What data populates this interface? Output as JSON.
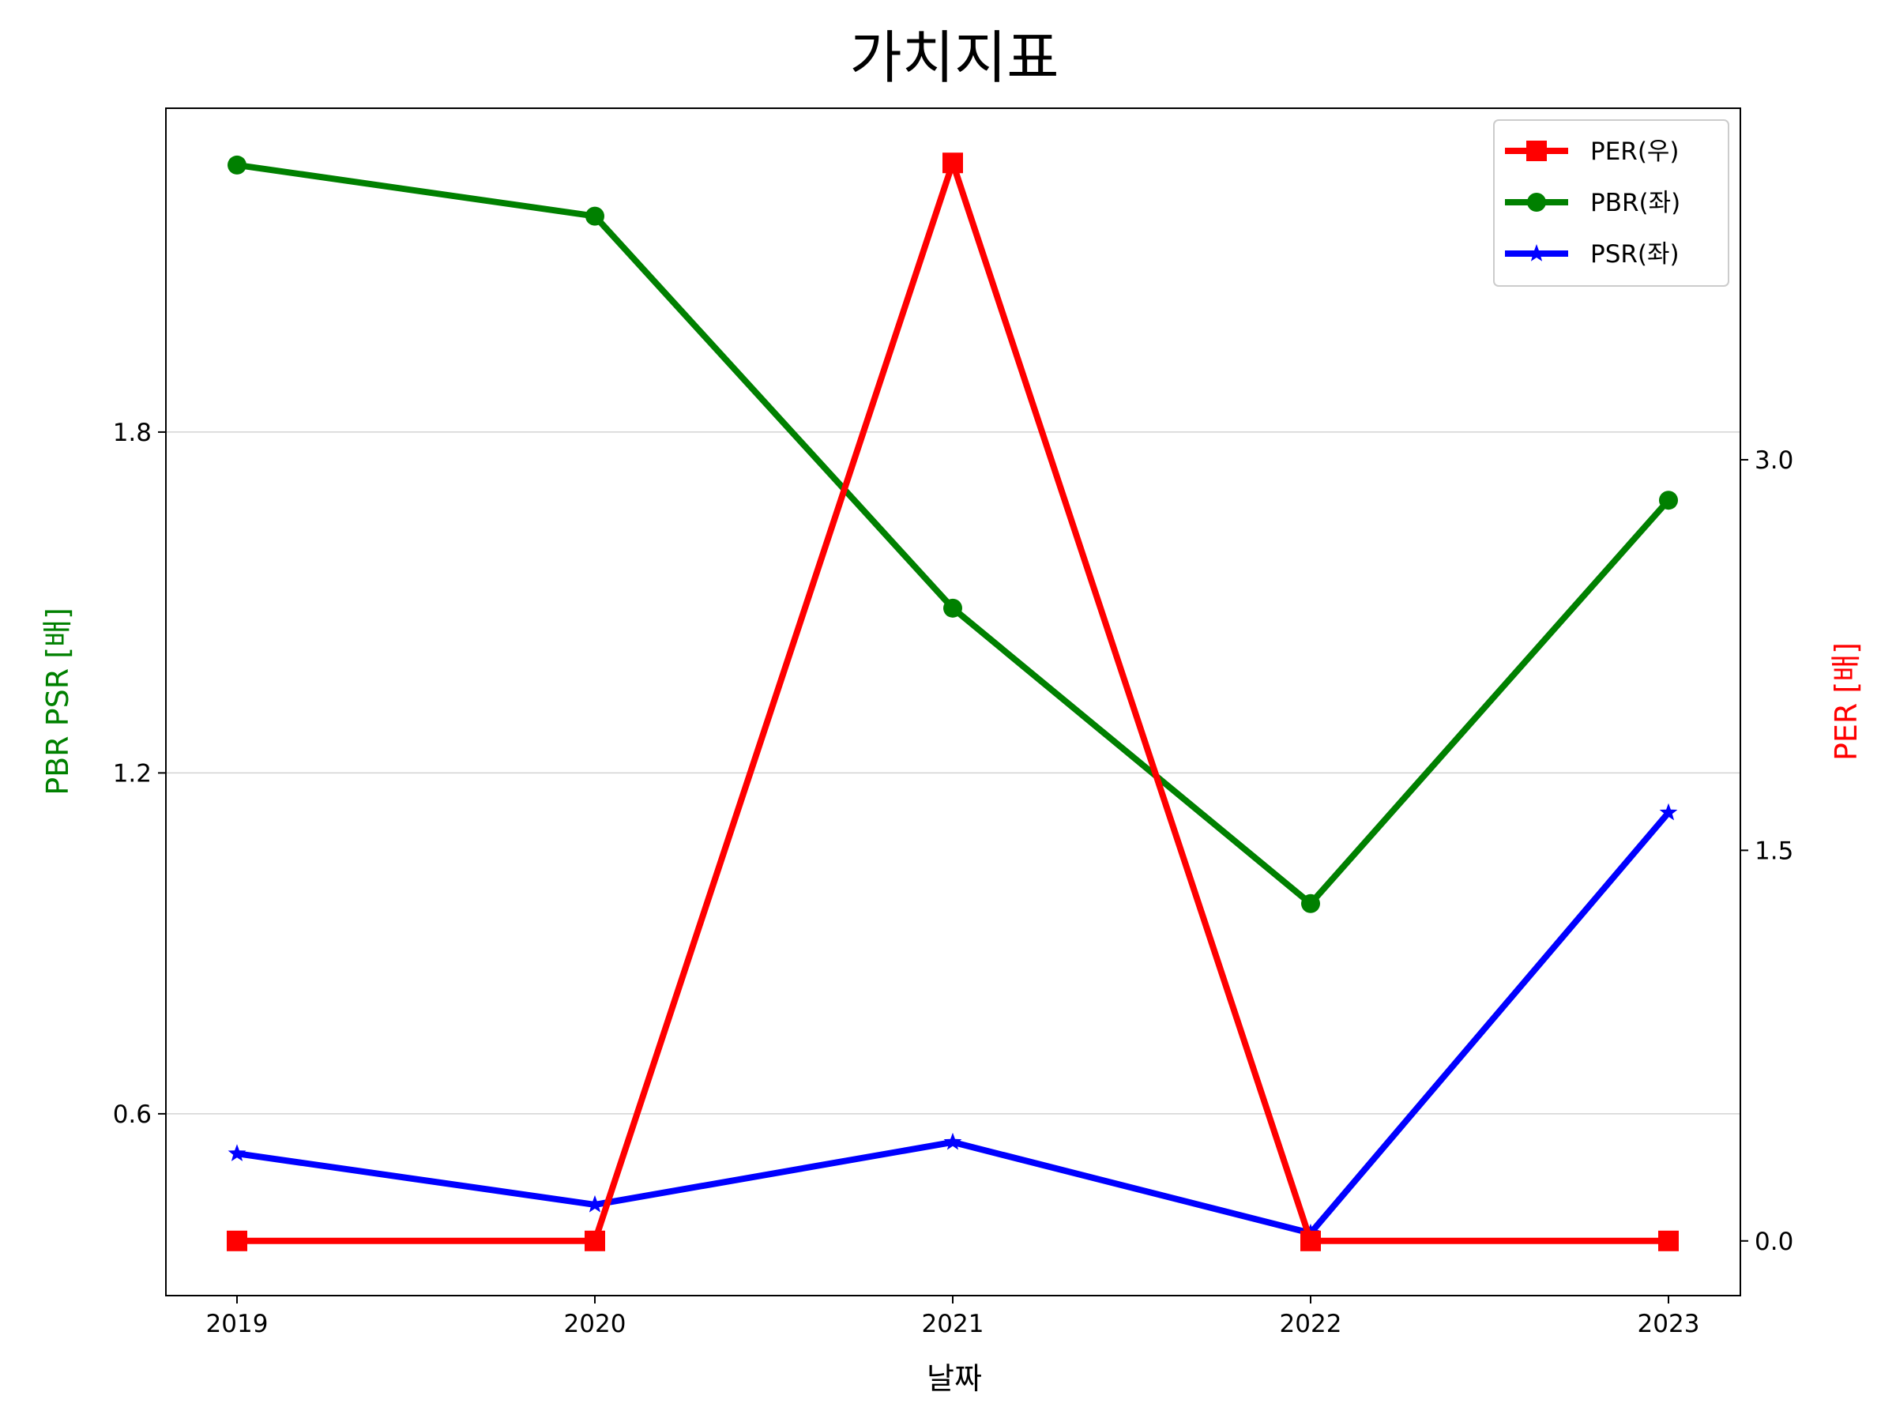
{
  "chart_data": {
    "type": "line",
    "title": "가치지표",
    "xlabel": "날짜",
    "ylabel_left": "PBR PSR [배]",
    "ylabel_right": "PER [배]",
    "categories": [
      "2019",
      "2020",
      "2021",
      "2022",
      "2023"
    ],
    "left_axis": {
      "range": [
        0.28,
        2.37
      ],
      "ticks": [
        "0.6",
        "1.2",
        "1.8"
      ],
      "tick_values": [
        0.6,
        1.2,
        1.8
      ],
      "grid": true
    },
    "right_axis": {
      "range": [
        -0.21,
        4.35
      ],
      "ticks": [
        "0.0",
        "1.5",
        "3.0"
      ],
      "tick_values": [
        0,
        1.5,
        3.0
      ]
    },
    "legend": {
      "placement": "upper-right"
    },
    "series": [
      {
        "name": "PER(우)",
        "axis": "right",
        "color": "#ff0000",
        "marker": "square",
        "values": [
          0,
          0,
          4.14,
          0,
          0
        ]
      },
      {
        "name": "PBR(좌)",
        "axis": "left",
        "color": "#008000",
        "marker": "circle",
        "values": [
          2.27,
          2.18,
          1.49,
          0.97,
          1.68
        ]
      },
      {
        "name": "PSR(좌)",
        "axis": "left",
        "color": "#0000ff",
        "marker": "star",
        "values": [
          0.53,
          0.44,
          0.55,
          0.39,
          1.13
        ]
      }
    ],
    "label_colors": {
      "ylabel_left": "#008000",
      "ylabel_right": "#ff0000"
    }
  }
}
